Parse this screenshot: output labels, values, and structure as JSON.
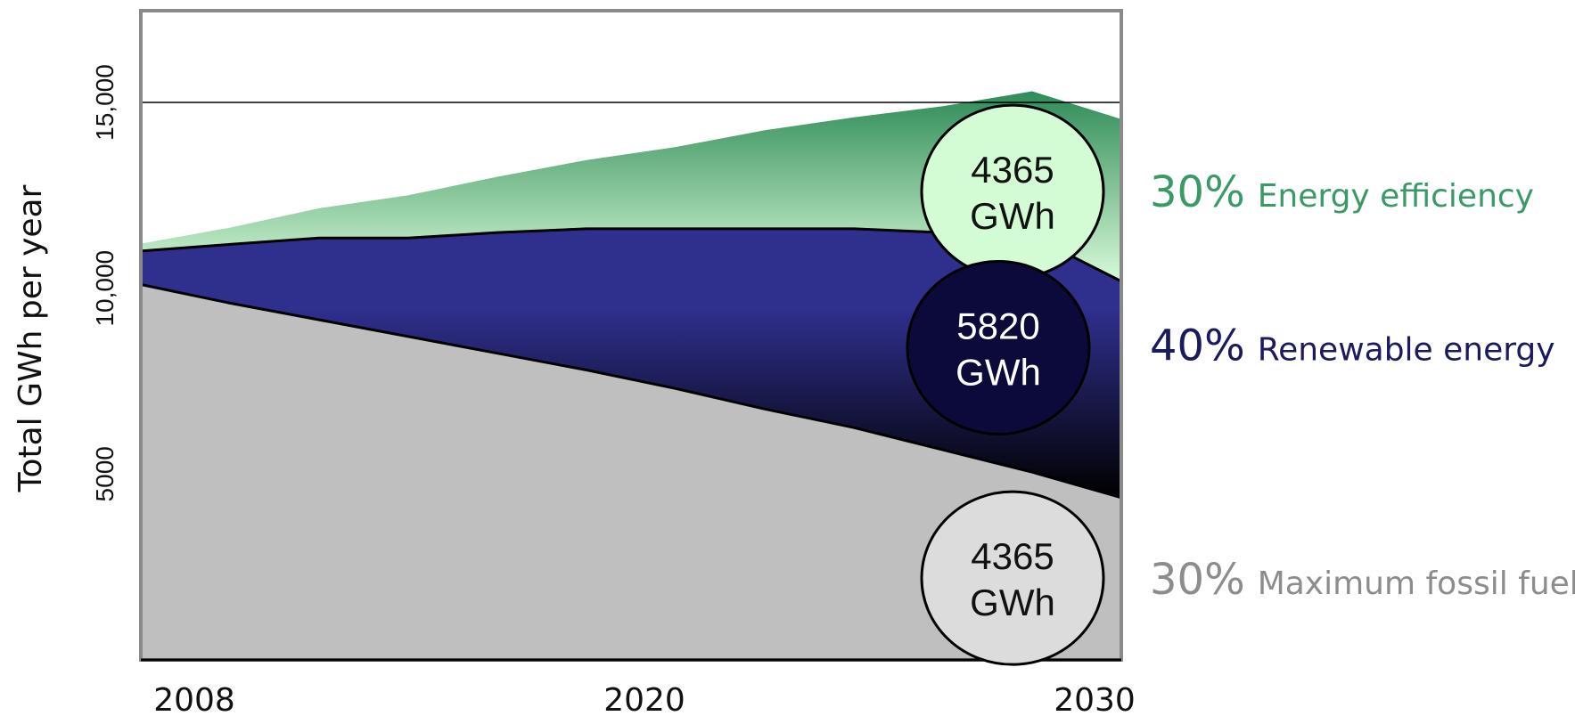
{
  "chart_data": {
    "type": "area",
    "ylabel": "Total GWh per year",
    "xlabel": "",
    "x_ticks": [
      "2008",
      "2020",
      "2030"
    ],
    "y_ticks": [
      {
        "value": 5000,
        "label": "5000"
      },
      {
        "value": 10000,
        "label": "10,000"
      },
      {
        "value": 15000,
        "label": "15,000"
      }
    ],
    "xlim": [
      2008,
      2030
    ],
    "ylim": [
      0,
      17000
    ],
    "reference_line": 15000,
    "x": [
      2008,
      2010,
      2012,
      2014,
      2016,
      2018,
      2020,
      2022,
      2024,
      2026,
      2028,
      2030
    ],
    "series": [
      {
        "key": "fossil",
        "values": [
          10100,
          9600,
          9150,
          8700,
          8250,
          7800,
          7300,
          6750,
          6250,
          5650,
          5050,
          4365
        ],
        "color_top": "#bfbfbf",
        "color_bottom": "#bfbfbf"
      },
      {
        "key": "renewable",
        "values": [
          900,
          1580,
          2200,
          2650,
          3250,
          3800,
          4300,
          4850,
          5350,
          5850,
          6350,
          5820
        ],
        "color_top": "#2f2f8e",
        "color_bottom": "#000000"
      },
      {
        "key": "efficiency",
        "values": [
          200,
          450,
          800,
          1150,
          1500,
          1850,
          2200,
          2650,
          3000,
          3400,
          3900,
          4365
        ],
        "color_top": "#2e8b57",
        "color_bottom": "#d8fad8"
      }
    ],
    "bubbles": [
      {
        "value": "4365",
        "unit": "GWh",
        "fill": "#d4fcd4",
        "text_color": "#111111",
        "y_value": 12600
      },
      {
        "value": "5820",
        "unit": "GWh",
        "fill": "#0c0a3a",
        "text_color": "#ffffff",
        "y_value": 8400
      },
      {
        "value": "4365",
        "unit": "GWh",
        "fill": "#dcdcdc",
        "text_color": "#111111",
        "y_value": 2200
      }
    ],
    "legend": [
      {
        "pct": "30%",
        "name": "Energy efficiency",
        "color": "#3a9a66"
      },
      {
        "pct": "40%",
        "name": "Renewable energy",
        "color": "#1a1a5e"
      },
      {
        "pct": "30%",
        "name": "Maximum fossil fuel",
        "color": "#8c8c8c"
      }
    ]
  }
}
